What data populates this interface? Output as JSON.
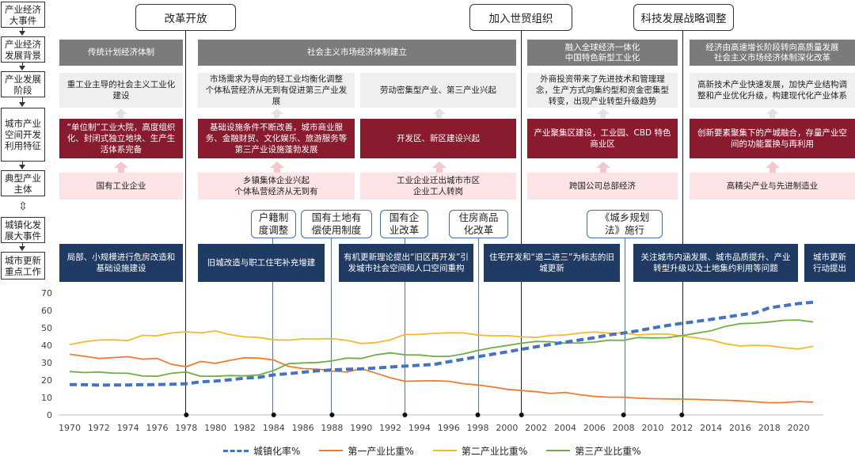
{
  "row_labels": [
    "产业经济大事件",
    "产业经济发展背景",
    "产业发展阶段",
    "城市产业空间开发利用特征",
    "典型产业主体",
    "城镇化发展大事件",
    "城市更新重点工作"
  ],
  "events": [
    "改革开放",
    "加入世贸组织",
    "科技发展战略调整"
  ],
  "background": [
    "传统计划经济体制",
    "社会主义市场经济体制建立",
    "融入全球经济一体化\n中国特色新型工业化",
    "经济由高速增长阶段转向高质量发展\n社会主义市场经济体制深化改革"
  ],
  "stages": [
    "重工业主导的社会主义工业化建设",
    "市场需求为导向的轻工业均衡化调整\n个体私营经济从无到有促进第三产业发展",
    "劳动密集型产业、第三产业兴起",
    "外商投资带来了先进技术和管理理念，生产方式向集约型和资金密集型转变，出现产业转型升级趋势",
    "高新技术产业快速发展，加快产业结构调整和产业优化升级，构建现代化产业体系"
  ],
  "space": [
    "“单位制”工业大院，高度组织化、封闭式独立地块、生产生活体系完备",
    "基础设施条件不断改善，城市商业服务、金融财贸、文化娱乐、旅游服务等第三产业设施蓬勃发展",
    "开发区、新区建设兴起",
    "产业聚集区建设，工业园、CBD 特色商业区",
    "创新要素聚集下的产城融合，存量产业空间的功能置换与再利用"
  ],
  "subjects": [
    "国有工业企业",
    "乡镇集体企业兴起\n个体私营经济从无到有",
    "工业企业迁出城市市区\n企业工人转岗",
    "跨国公司总部经济",
    "高精尖产业与先进制造业"
  ],
  "urban_events": [
    "户籍制\n度调整",
    "国有土地有\n偿使用制度",
    "国有企\n业改革",
    "住房商品\n化改革",
    "《城乡规划\n法》施行"
  ],
  "renewal": [
    "局部、小规模进行危房改造和基础设施建设",
    "旧城改造与职工住宅补充增建",
    "有机更新理论提出“旧区再开发”引发城市社会空间和人口空间重构",
    "住宅开发和“退二进三”为标志的旧城更新",
    "关注城市内涵发展、城市品质提升、产业转型升级以及土地集约利用等问题",
    "城市更新\n行动提出"
  ],
  "legend": [
    "城镇化率%",
    "第一产业比重%",
    "第二产业比重%",
    "第三产业比重%"
  ],
  "chart_data": {
    "type": "line",
    "x": [
      1970,
      1971,
      1972,
      1973,
      1974,
      1975,
      1976,
      1977,
      1978,
      1979,
      1980,
      1981,
      1982,
      1983,
      1984,
      1985,
      1986,
      1987,
      1988,
      1989,
      1990,
      1991,
      1992,
      1993,
      1994,
      1995,
      1996,
      1997,
      1998,
      1999,
      2000,
      2001,
      2002,
      2003,
      2004,
      2005,
      2006,
      2007,
      2008,
      2009,
      2010,
      2011,
      2012,
      2013,
      2014,
      2015,
      2016,
      2017,
      2018,
      2019,
      2020,
      2021
    ],
    "xticks": [
      1970,
      1972,
      1974,
      1976,
      1978,
      1980,
      1982,
      1984,
      1986,
      1988,
      1990,
      1992,
      1994,
      1996,
      1998,
      2000,
      2002,
      2004,
      2006,
      2008,
      2010,
      2012,
      2014,
      2016,
      2018,
      2020
    ],
    "ylim": [
      0,
      70
    ],
    "yticks": [
      0,
      10,
      20,
      30,
      40,
      50,
      60,
      70
    ],
    "colors": {
      "urban": "#4472c4",
      "primary": "#ed7d31",
      "secondary": "#f4b92e",
      "tertiary": "#70ad47"
    },
    "series": [
      {
        "name": "城镇化率%",
        "values": [
          17.4,
          17.3,
          17.1,
          17.2,
          17.2,
          17.3,
          17.4,
          17.6,
          17.9,
          19.0,
          19.4,
          20.2,
          21.1,
          21.6,
          23.0,
          23.7,
          24.5,
          25.3,
          25.8,
          26.2,
          26.4,
          26.9,
          27.5,
          28.0,
          28.5,
          29.0,
          30.5,
          31.9,
          33.4,
          34.8,
          36.2,
          37.7,
          39.1,
          40.5,
          41.8,
          43.0,
          44.3,
          45.9,
          47.0,
          48.3,
          49.9,
          51.3,
          52.6,
          53.7,
          54.8,
          56.1,
          57.4,
          58.5,
          61.5,
          62.7,
          63.9,
          64.7
        ]
      },
      {
        "name": "第一产业比重%",
        "values": [
          34.8,
          33.7,
          32.4,
          32.9,
          33.4,
          32.0,
          32.4,
          29.0,
          27.7,
          30.7,
          29.6,
          31.3,
          32.8,
          32.6,
          31.5,
          27.9,
          26.6,
          26.3,
          25.2,
          24.6,
          26.6,
          24.0,
          21.3,
          19.3,
          19.5,
          19.6,
          19.3,
          17.9,
          17.2,
          16.1,
          14.7,
          14.0,
          13.3,
          12.3,
          12.9,
          11.6,
          10.6,
          10.2,
          10.2,
          9.6,
          9.3,
          9.2,
          9.1,
          8.9,
          8.6,
          8.4,
          8.1,
          7.5,
          7.0,
          7.1,
          7.7,
          7.3
        ]
      },
      {
        "name": "第二产业比重%",
        "values": [
          40.3,
          42.0,
          43.0,
          43.1,
          42.7,
          45.7,
          45.4,
          47.1,
          47.7,
          47.1,
          48.2,
          46.1,
          44.8,
          44.4,
          43.1,
          42.9,
          43.7,
          43.6,
          43.8,
          42.8,
          41.0,
          41.5,
          43.1,
          46.2,
          46.2,
          46.8,
          47.1,
          47.1,
          45.8,
          45.4,
          45.5,
          44.8,
          44.5,
          45.6,
          45.9,
          47.0,
          47.6,
          46.9,
          47.0,
          45.9,
          46.4,
          46.4,
          45.3,
          44.2,
          43.1,
          40.8,
          39.6,
          39.9,
          39.7,
          38.6,
          37.8,
          39.4
        ]
      },
      {
        "name": "第三产业比重%",
        "values": [
          24.9,
          24.3,
          24.6,
          24.0,
          23.9,
          22.3,
          22.2,
          23.9,
          24.6,
          22.2,
          22.2,
          22.6,
          22.4,
          23.0,
          25.5,
          29.4,
          29.8,
          30.1,
          31.0,
          32.6,
          32.4,
          34.5,
          35.6,
          34.5,
          34.4,
          33.6,
          33.6,
          35.0,
          37.0,
          38.6,
          39.8,
          41.2,
          42.2,
          42.0,
          41.2,
          41.3,
          41.8,
          42.9,
          42.8,
          44.4,
          44.2,
          44.3,
          45.5,
          46.9,
          48.3,
          50.8,
          52.4,
          52.7,
          53.3,
          54.3,
          54.5,
          53.3
        ]
      }
    ]
  }
}
